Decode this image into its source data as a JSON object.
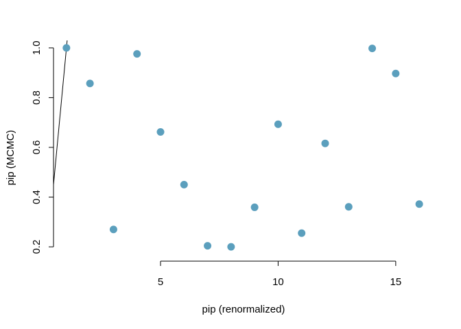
{
  "chart_data": {
    "type": "scatter",
    "title": "",
    "xlabel": "pip (renormalized)",
    "ylabel": "pip (MCMC)",
    "xlim": [
      0.45,
      16.55
    ],
    "ylim": [
      0.17,
      1.03
    ],
    "xticks": [
      5,
      10,
      15
    ],
    "yticks": [
      0.2,
      0.4,
      0.6,
      0.8,
      1.0
    ],
    "xtick_labels": [
      "5",
      "10",
      "15"
    ],
    "ytick_labels": [
      "0.2",
      "0.4",
      "0.6",
      "0.8",
      "1.0"
    ],
    "grid": false,
    "legend": "none",
    "point_color": "#5b9fbd",
    "reference_line": {
      "intercept": 0,
      "slope": 1
    },
    "series": [
      {
        "x": [
          1,
          2,
          3,
          4,
          5,
          6,
          7,
          8,
          9,
          10,
          11,
          12,
          13,
          14,
          15,
          16
        ],
        "y": [
          1.0,
          0.857,
          0.27,
          0.976,
          0.662,
          0.45,
          0.204,
          0.2,
          0.359,
          0.693,
          0.255,
          0.616,
          0.361,
          0.998,
          0.897,
          0.372
        ]
      }
    ]
  }
}
